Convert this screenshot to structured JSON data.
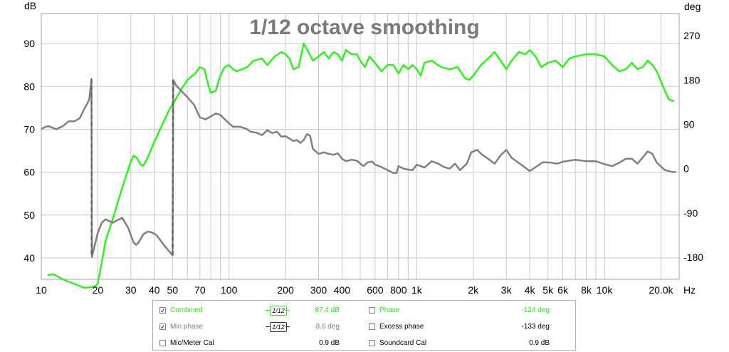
{
  "chart_data": {
    "type": "line",
    "title": "1/12 octave smoothing",
    "x_scale": "log",
    "xlim": [
      10,
      25000
    ],
    "x_ticks": [
      10,
      20,
      30,
      40,
      50,
      70,
      100,
      200,
      300,
      400,
      600,
      800,
      1000,
      2000,
      3000,
      4000,
      5000,
      6000,
      8000,
      10000,
      20000
    ],
    "x_tick_labels": [
      "10",
      "20",
      "30",
      "40",
      "50",
      "70",
      "100",
      "200",
      "300",
      "400",
      "600",
      "800",
      "1k",
      "2k",
      "3k",
      "4k",
      "5k",
      "6k",
      "8k",
      "10k",
      "20.0k"
    ],
    "x_unit": "Hz",
    "y_left": {
      "label": "dB",
      "lim": [
        35,
        97
      ],
      "ticks": [
        40,
        50,
        60,
        70,
        80,
        90
      ]
    },
    "y_right": {
      "label": "deg",
      "lim": [
        -225,
        315
      ],
      "ticks": [
        -180,
        -90,
        0,
        90,
        180,
        270
      ]
    },
    "grid": true,
    "series": [
      {
        "name": "Combined",
        "axis": "left",
        "color": "#33ee22",
        "points": [
          [
            10.8,
            36
          ],
          [
            11.6,
            36.2
          ],
          [
            13,
            35
          ],
          [
            17,
            33
          ],
          [
            18.5,
            33.2
          ],
          [
            19.5,
            33.5
          ],
          [
            20,
            34
          ],
          [
            21,
            39
          ],
          [
            22,
            44
          ],
          [
            24,
            49
          ],
          [
            26,
            54
          ],
          [
            28,
            58.5
          ],
          [
            30,
            62.5
          ],
          [
            31,
            63.8
          ],
          [
            32,
            63.5
          ],
          [
            34,
            61.7
          ],
          [
            35,
            61.5
          ],
          [
            37,
            63.5
          ],
          [
            40,
            67
          ],
          [
            44,
            71
          ],
          [
            48,
            74.5
          ],
          [
            52,
            77
          ],
          [
            56,
            79.5
          ],
          [
            60,
            81.5
          ],
          [
            66,
            83
          ],
          [
            70,
            84.5
          ],
          [
            74,
            84
          ],
          [
            78,
            80
          ],
          [
            80,
            78.5
          ],
          [
            85,
            79
          ],
          [
            90,
            82.5
          ],
          [
            95,
            84.5
          ],
          [
            100,
            85
          ],
          [
            105,
            84
          ],
          [
            110,
            83.5
          ],
          [
            125,
            84.5
          ],
          [
            135,
            86
          ],
          [
            150,
            86.5
          ],
          [
            160,
            85
          ],
          [
            175,
            87
          ],
          [
            190,
            88
          ],
          [
            200,
            87.5
          ],
          [
            210,
            86.5
          ],
          [
            220,
            84
          ],
          [
            235,
            84.5
          ],
          [
            250,
            90
          ],
          [
            265,
            88
          ],
          [
            280,
            86
          ],
          [
            300,
            87
          ],
          [
            320,
            88
          ],
          [
            340,
            86.5
          ],
          [
            360,
            88
          ],
          [
            380,
            87.5
          ],
          [
            400,
            86
          ],
          [
            420,
            88.5
          ],
          [
            450,
            87.5
          ],
          [
            480,
            87.5
          ],
          [
            500,
            86
          ],
          [
            530,
            84.5
          ],
          [
            560,
            87
          ],
          [
            600,
            85.5
          ],
          [
            650,
            83.5
          ],
          [
            700,
            85
          ],
          [
            750,
            85
          ],
          [
            800,
            83
          ],
          [
            850,
            85
          ],
          [
            900,
            84
          ],
          [
            950,
            85
          ],
          [
            1000,
            84
          ],
          [
            1050,
            82.5
          ],
          [
            1100,
            85.5
          ],
          [
            1200,
            86
          ],
          [
            1350,
            84.5
          ],
          [
            1500,
            84
          ],
          [
            1650,
            84.5
          ],
          [
            1800,
            82
          ],
          [
            1900,
            81.5
          ],
          [
            2000,
            82.5
          ],
          [
            2200,
            85
          ],
          [
            2400,
            86.5
          ],
          [
            2600,
            88
          ],
          [
            2800,
            86
          ],
          [
            3000,
            84
          ],
          [
            3200,
            86
          ],
          [
            3500,
            88
          ],
          [
            3800,
            87.5
          ],
          [
            4000,
            88.5
          ],
          [
            4300,
            87
          ],
          [
            4600,
            84.5
          ],
          [
            5000,
            85.5
          ],
          [
            5500,
            86
          ],
          [
            6000,
            84.5
          ],
          [
            6500,
            86.5
          ],
          [
            7000,
            87
          ],
          [
            8000,
            87.5
          ],
          [
            9000,
            87.5
          ],
          [
            10000,
            87
          ],
          [
            11000,
            85
          ],
          [
            12000,
            83.5
          ],
          [
            13000,
            84
          ],
          [
            14000,
            85.5
          ],
          [
            15000,
            84
          ],
          [
            16000,
            84.5
          ],
          [
            17000,
            86
          ],
          [
            18000,
            85
          ],
          [
            19000,
            83.5
          ],
          [
            21000,
            79
          ],
          [
            22000,
            77
          ],
          [
            23500,
            76.5
          ]
        ]
      },
      {
        "name": "Min phase",
        "axis": "right",
        "color": "#808080",
        "points": [
          [
            10,
            80
          ],
          [
            10.5,
            85
          ],
          [
            11,
            86
          ],
          [
            12,
            80
          ],
          [
            13,
            86
          ],
          [
            14,
            96
          ],
          [
            15,
            96
          ],
          [
            16,
            102
          ],
          [
            17,
            122
          ],
          [
            18,
            140
          ],
          [
            18.5,
            182
          ],
          [
            18.6,
            -180
          ],
          [
            19,
            -165
          ],
          [
            20,
            -130
          ],
          [
            21,
            -110
          ],
          [
            22,
            -103
          ],
          [
            24,
            -110
          ],
          [
            26,
            -103
          ],
          [
            27,
            -100
          ],
          [
            29,
            -120
          ],
          [
            31,
            -150
          ],
          [
            32,
            -155
          ],
          [
            33,
            -150
          ],
          [
            35,
            -133
          ],
          [
            37,
            -128
          ],
          [
            39,
            -130
          ],
          [
            41,
            -135
          ],
          [
            43,
            -145
          ],
          [
            46,
            -160
          ],
          [
            50,
            -176
          ],
          [
            50.5,
            180
          ],
          [
            52,
            170
          ],
          [
            55,
            160
          ],
          [
            60,
            145
          ],
          [
            65,
            130
          ],
          [
            70,
            104
          ],
          [
            75,
            100
          ],
          [
            80,
            106
          ],
          [
            85,
            112
          ],
          [
            90,
            109
          ],
          [
            95,
            100
          ],
          [
            100,
            92
          ],
          [
            105,
            85
          ],
          [
            115,
            85
          ],
          [
            125,
            80
          ],
          [
            130,
            75
          ],
          [
            140,
            73
          ],
          [
            150,
            68
          ],
          [
            160,
            78
          ],
          [
            170,
            72
          ],
          [
            180,
            75
          ],
          [
            190,
            65
          ],
          [
            200,
            66
          ],
          [
            220,
            56
          ],
          [
            230,
            58
          ],
          [
            240,
            52
          ],
          [
            250,
            58
          ],
          [
            260,
            70
          ],
          [
            270,
            67
          ],
          [
            280,
            40
          ],
          [
            300,
            30
          ],
          [
            320,
            33
          ],
          [
            340,
            30
          ],
          [
            360,
            28
          ],
          [
            380,
            31
          ],
          [
            400,
            20
          ],
          [
            420,
            15
          ],
          [
            450,
            18
          ],
          [
            480,
            16
          ],
          [
            520,
            5
          ],
          [
            550,
            13
          ],
          [
            580,
            14
          ],
          [
            600,
            8
          ],
          [
            650,
            3
          ],
          [
            700,
            -3
          ],
          [
            750,
            -9
          ],
          [
            780,
            -9
          ],
          [
            800,
            5
          ],
          [
            850,
            0
          ],
          [
            900,
            -2
          ],
          [
            950,
            -3
          ],
          [
            1000,
            8
          ],
          [
            1100,
            2
          ],
          [
            1200,
            15
          ],
          [
            1300,
            10
          ],
          [
            1400,
            3
          ],
          [
            1500,
            0
          ],
          [
            1600,
            10
          ],
          [
            1700,
            -3
          ],
          [
            1850,
            10
          ],
          [
            1950,
            33
          ],
          [
            2100,
            38
          ],
          [
            2200,
            30
          ],
          [
            2400,
            20
          ],
          [
            2600,
            10
          ],
          [
            2800,
            27
          ],
          [
            3000,
            38
          ],
          [
            3200,
            22
          ],
          [
            3600,
            8
          ],
          [
            4000,
            -5
          ],
          [
            4300,
            3
          ],
          [
            4700,
            13
          ],
          [
            5200,
            12
          ],
          [
            5600,
            10
          ],
          [
            6000,
            14
          ],
          [
            7000,
            18
          ],
          [
            8000,
            15
          ],
          [
            9000,
            15
          ],
          [
            10000,
            9
          ],
          [
            11000,
            5
          ],
          [
            12000,
            12
          ],
          [
            13000,
            20
          ],
          [
            14000,
            20
          ],
          [
            15000,
            10
          ],
          [
            17000,
            35
          ],
          [
            18000,
            30
          ],
          [
            19000,
            12
          ],
          [
            21000,
            -3
          ],
          [
            23000,
            -7
          ],
          [
            24000,
            -7
          ]
        ]
      },
      {
        "name": "phase-wrap-1",
        "axis": "right",
        "color": "#606060",
        "dashed": true,
        "points": [
          [
            18.5,
            182
          ],
          [
            18.5,
            -180
          ]
        ]
      },
      {
        "name": "phase-wrap-2",
        "axis": "right",
        "color": "#606060",
        "dashed": true,
        "points": [
          [
            50.2,
            180
          ],
          [
            50.2,
            -178
          ]
        ]
      }
    ]
  },
  "legend": {
    "rows": [
      {
        "checked": true,
        "label": "Combined",
        "label_color": "#33dd22",
        "smoothing": "1/12",
        "smoothing_color": "#33dd22",
        "value": "87.4 dB",
        "value_color": "#33dd22",
        "checked2": false,
        "label2": "Phase",
        "label2_color": "#33dd22",
        "value2": "-124 deg",
        "value2_color": "#33dd22"
      },
      {
        "checked": true,
        "label": "Min phase",
        "label_color": "#808080",
        "smoothing": "1/12",
        "smoothing_color": "#333333",
        "value": "8.6 deg",
        "value_color": "#808080",
        "checked2": false,
        "label2": "Excess phase",
        "label2_color": "#000000",
        "value2": "-133 deg",
        "value2_color": "#000000"
      },
      {
        "checked": false,
        "label": "Mic/Meter Cal",
        "label_color": "#000000",
        "smoothing": "",
        "value": "0.9 dB",
        "value_color": "#000000",
        "checked2": false,
        "label2": "Soundcard Cal",
        "label2_color": "#000000",
        "value2": "0.9 dB",
        "value2_color": "#000000"
      }
    ]
  }
}
